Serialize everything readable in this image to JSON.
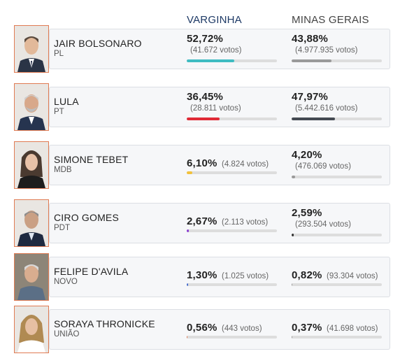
{
  "header": {
    "city": "VARGINHA",
    "state": "MINAS GERAIS"
  },
  "candidates": [
    {
      "name": "JAIR BOLSONARO",
      "party": "PL",
      "city": {
        "pct": "52,72%",
        "votes": "(41.672 votos)",
        "share": 0.5272,
        "color": "#3fbcc2"
      },
      "state": {
        "pct": "43,88%",
        "votes": "(4.977.935 votos)",
        "share": 0.4388,
        "color": "#9a9a9a"
      }
    },
    {
      "name": "LULA",
      "party": "PT",
      "city": {
        "pct": "36,45%",
        "votes": "(28.811 votos)",
        "share": 0.3645,
        "color": "#e02a36"
      },
      "state": {
        "pct": "47,97%",
        "votes": "(5.442.616 votos)",
        "share": 0.4797,
        "color": "#444a52"
      }
    },
    {
      "name": "SIMONE TEBET",
      "party": "MDB",
      "city": {
        "pct": "6,10%",
        "votes": "(4.824 votos)",
        "share": 0.061,
        "color": "#f2c13b"
      },
      "state": {
        "pct": "4,20%",
        "votes": "(476.069 votos)",
        "share": 0.042,
        "color": "#9a9a9a"
      }
    },
    {
      "name": "CIRO GOMES",
      "party": "PDT",
      "city": {
        "pct": "2,67%",
        "votes": "(2.113 votos)",
        "share": 0.0267,
        "color": "#8b3fd1"
      },
      "state": {
        "pct": "2,59%",
        "votes": "(293.504 votos)",
        "share": 0.0259,
        "color": "#333333"
      }
    },
    {
      "name": "FELIPE D'AVILA",
      "party": "NOVO",
      "city": {
        "pct": "1,30%",
        "votes": "(1.025 votos)",
        "share": 0.013,
        "color": "#4a6fd0"
      },
      "state": {
        "pct": "0,82%",
        "votes": "(93.304 votos)",
        "share": 0.0082,
        "color": "#9a9a9a"
      }
    },
    {
      "name": "SORAYA THRONICKE",
      "party": "UNIÃO",
      "city": {
        "pct": "0,56%",
        "votes": "(443 votos)",
        "share": 0.0056,
        "color": "#e07b53"
      },
      "state": {
        "pct": "0,37%",
        "votes": "(41.698 votos)",
        "share": 0.0037,
        "color": "#9a9a9a"
      }
    }
  ]
}
